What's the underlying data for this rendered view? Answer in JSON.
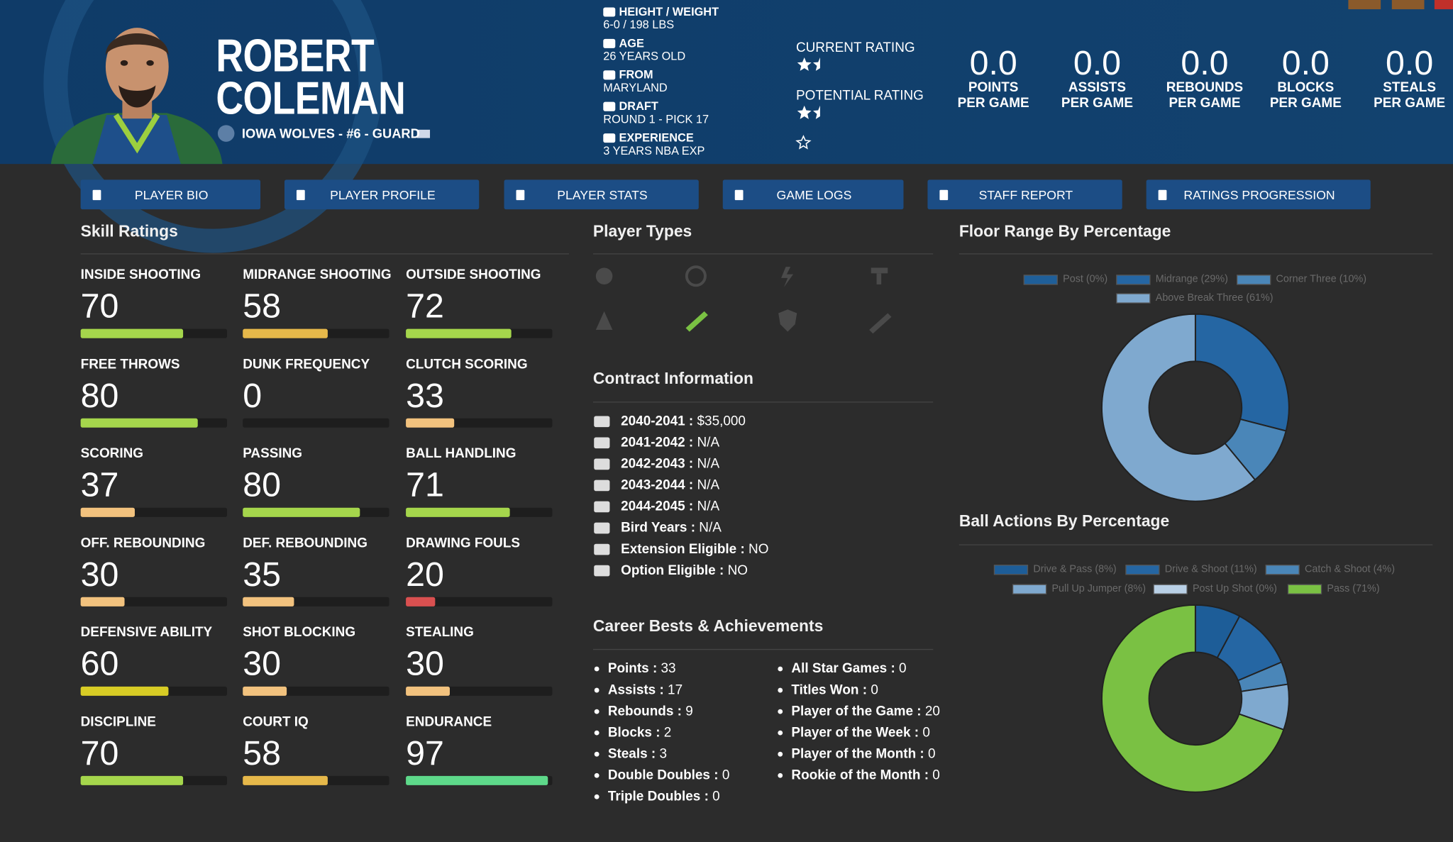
{
  "header": {
    "first_name": "ROBERT",
    "last_name": "COLEMAN",
    "team_line": "IOWA WOLVES - #6 - GUARD",
    "info": [
      {
        "label": "HEIGHT / WEIGHT",
        "value": "6-0 / 198 LBS"
      },
      {
        "label": "AGE",
        "value": "26 YEARS OLD"
      },
      {
        "label": "FROM",
        "value": "MARYLAND"
      },
      {
        "label": "DRAFT",
        "value": "ROUND 1 - PICK 17"
      },
      {
        "label": "EXPERIENCE",
        "value": "3 YEARS NBA EXP"
      }
    ],
    "ratings": [
      {
        "label": "CURRENT RATING",
        "stars": 1.5
      },
      {
        "label": "POTENTIAL RATING",
        "stars": 1.5
      }
    ],
    "stats": [
      {
        "value": "0.0",
        "label": [
          "POINTS",
          "PER GAME"
        ]
      },
      {
        "value": "0.0",
        "label": [
          "ASSISTS",
          "PER GAME"
        ]
      },
      {
        "value": "0.0",
        "label": [
          "REBOUNDS",
          "PER GAME"
        ]
      },
      {
        "value": "0.0",
        "label": [
          "BLOCKS",
          "PER GAME"
        ]
      },
      {
        "value": "0.0",
        "label": [
          "STEALS",
          "PER GAME"
        ]
      }
    ]
  },
  "tabs": [
    "PLAYER BIO",
    "PLAYER PROFILE",
    "PLAYER STATS",
    "GAME LOGS",
    "STAFF REPORT",
    "RATINGS PROGRESSION"
  ],
  "skill_ratings": {
    "title": "Skill Ratings",
    "bar_range": [
      0,
      100
    ],
    "items": [
      {
        "name": "INSIDE SHOOTING",
        "value": 70,
        "color": "#a5d64c"
      },
      {
        "name": "MIDRANGE SHOOTING",
        "value": 58,
        "color": "#e6b84a"
      },
      {
        "name": "OUTSIDE SHOOTING",
        "value": 72,
        "color": "#a5d64c"
      },
      {
        "name": "FREE THROWS",
        "value": 80,
        "color": "#a5d64c"
      },
      {
        "name": "DUNK FREQUENCY",
        "value": 0,
        "color": "#d95050"
      },
      {
        "name": "CLUTCH SCORING",
        "value": 33,
        "color": "#f2c27e"
      },
      {
        "name": "SCORING",
        "value": 37,
        "color": "#f2c27e"
      },
      {
        "name": "PASSING",
        "value": 80,
        "color": "#a5d64c"
      },
      {
        "name": "BALL HANDLING",
        "value": 71,
        "color": "#a5d64c"
      },
      {
        "name": "OFF. REBOUNDING",
        "value": 30,
        "color": "#f2c27e"
      },
      {
        "name": "DEF. REBOUNDING",
        "value": 35,
        "color": "#f2c27e"
      },
      {
        "name": "DRAWING FOULS",
        "value": 20,
        "color": "#d95050"
      },
      {
        "name": "DEFENSIVE ABILITY",
        "value": 60,
        "color": "#d8cc25"
      },
      {
        "name": "SHOT BLOCKING",
        "value": 30,
        "color": "#f2c27e"
      },
      {
        "name": "STEALING",
        "value": 30,
        "color": "#f2c27e"
      },
      {
        "name": "DISCIPLINE",
        "value": 70,
        "color": "#a5d64c"
      },
      {
        "name": "COURT IQ",
        "value": 58,
        "color": "#e6b84a"
      },
      {
        "name": "ENDURANCE",
        "value": 97,
        "color": "#5ed98a"
      }
    ]
  },
  "player_types": {
    "title": "Player Types"
  },
  "contract": {
    "title": "Contract Information",
    "rows": [
      {
        "label": "2040-2041",
        "value": "$35,000"
      },
      {
        "label": "2041-2042",
        "value": "N/A"
      },
      {
        "label": "2042-2043",
        "value": "N/A"
      },
      {
        "label": "2043-2044",
        "value": "N/A"
      },
      {
        "label": "2044-2045",
        "value": "N/A"
      },
      {
        "label": "Bird Years",
        "value": "N/A"
      },
      {
        "label": "Extension Eligible",
        "value": "NO"
      },
      {
        "label": "Option Eligible",
        "value": "NO"
      }
    ]
  },
  "career": {
    "title": "Career Bests & Achievements",
    "left": [
      {
        "label": "Points",
        "value": 33
      },
      {
        "label": "Assists",
        "value": 17
      },
      {
        "label": "Rebounds",
        "value": 9
      },
      {
        "label": "Blocks",
        "value": 2
      },
      {
        "label": "Steals",
        "value": 3
      },
      {
        "label": "Double Doubles",
        "value": 0
      },
      {
        "label": "Triple Doubles",
        "value": 0
      }
    ],
    "right": [
      {
        "label": "All Star Games",
        "value": 0
      },
      {
        "label": "Titles Won",
        "value": 0
      },
      {
        "label": "Player of the Game",
        "value": 20
      },
      {
        "label": "Player of the Week",
        "value": 0
      },
      {
        "label": "Player of the Month",
        "value": 0
      },
      {
        "label": "Rookie of the Month",
        "value": 0
      }
    ]
  },
  "chart_data": [
    {
      "type": "pie",
      "donut": true,
      "title": "Floor Range By Percentage",
      "categories": [
        "Post (0%)",
        "Midrange (29%)",
        "Corner Three (10%)",
        "Above Break Three (61%)"
      ],
      "values": [
        0,
        29,
        10,
        61
      ],
      "colors": [
        "#1f5f99",
        "#2566a3",
        "#4a86b8",
        "#7fa9cf"
      ]
    },
    {
      "type": "pie",
      "donut": true,
      "title": "Ball Actions By Percentage",
      "categories": [
        "Drive & Pass (8%)",
        "Drive & Shoot (11%)",
        "Catch & Shoot (4%)",
        "Pull Up Jumper (8%)",
        "Post Up Shot (0%)",
        "Pass (71%)"
      ],
      "values": [
        8,
        11,
        4,
        8,
        0,
        71
      ],
      "colors": [
        "#1d5d98",
        "#2566a3",
        "#4a86b8",
        "#7fa9cf",
        "#b9d0e6",
        "#7ac143"
      ]
    }
  ]
}
